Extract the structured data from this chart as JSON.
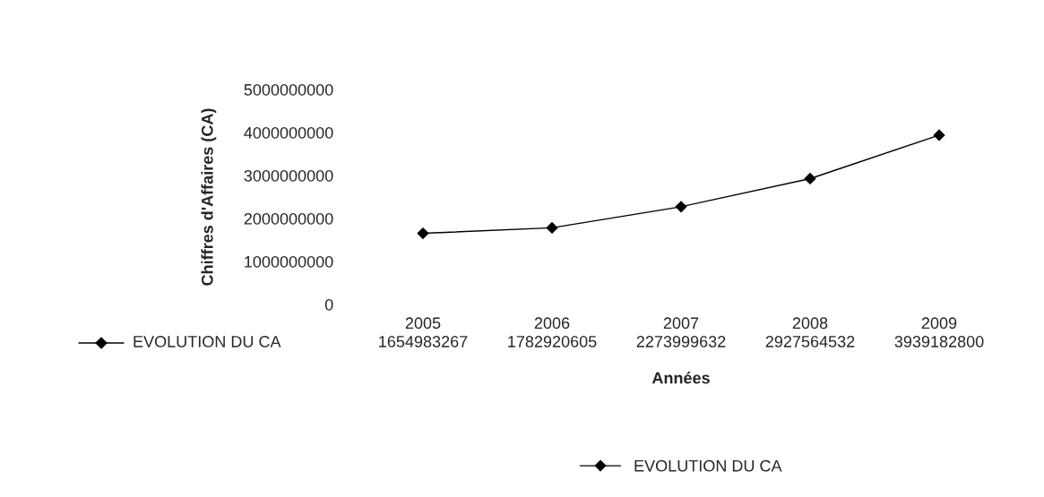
{
  "chart_data": {
    "type": "line",
    "xlabel": "Années",
    "ylabel": "Chiffres d'Affaires (CA)",
    "categories": [
      "2005",
      "2006",
      "2007",
      "2008",
      "2009"
    ],
    "series": [
      {
        "name": "EVOLUTION DU CA",
        "color": "#000000",
        "values": [
          1654983267,
          1782920605,
          2273999632,
          2927564532,
          3939182800
        ]
      }
    ],
    "ylim": [
      0,
      5000000000
    ],
    "yticks": [
      0,
      1000000000,
      2000000000,
      3000000000,
      4000000000,
      5000000000
    ],
    "marker": "diamond",
    "line_style": "solid",
    "grid": false,
    "legend": "bottom",
    "data_labels": true
  }
}
